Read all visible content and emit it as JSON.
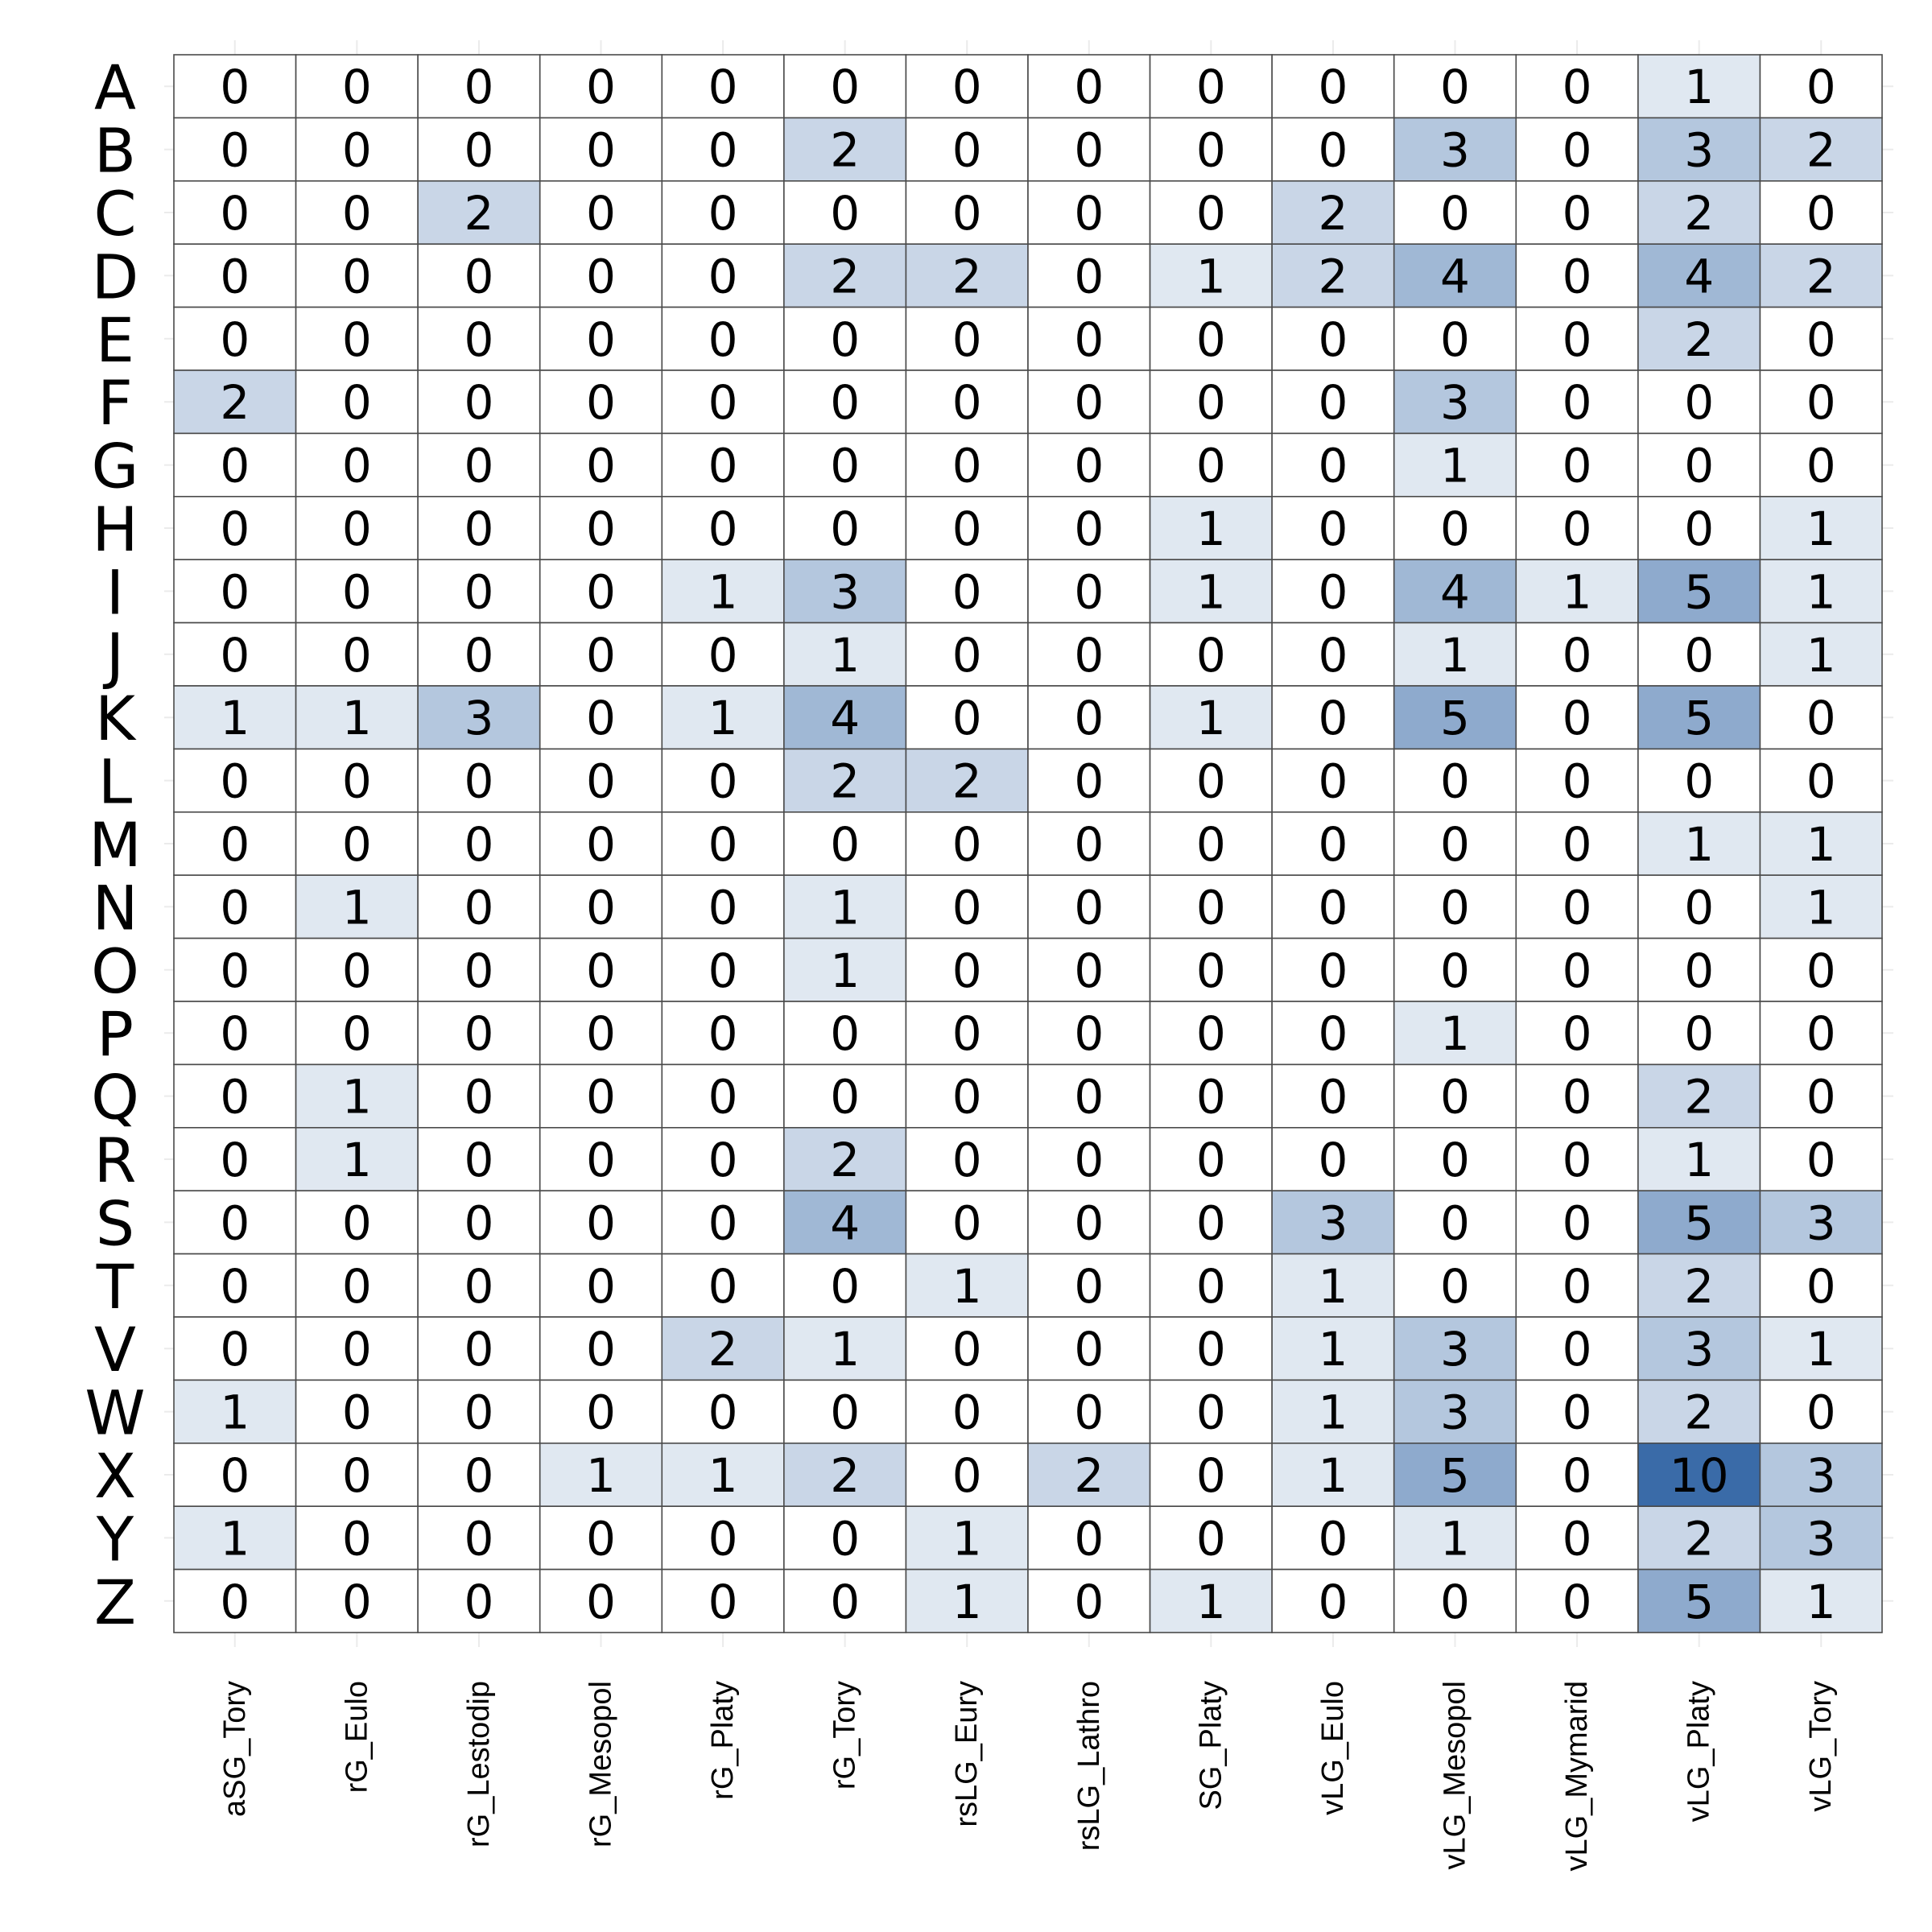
{
  "chart_data": {
    "type": "heatmap",
    "title": "",
    "xlabel": "",
    "ylabel": "",
    "rows": [
      "A",
      "B",
      "C",
      "D",
      "E",
      "F",
      "G",
      "H",
      "I",
      "J",
      "K",
      "L",
      "M",
      "N",
      "O",
      "P",
      "Q",
      "R",
      "S",
      "T",
      "V",
      "W",
      "X",
      "Y",
      "Z"
    ],
    "columns": [
      "aSG_Tory",
      "rG_Eulo",
      "rG_Lestodip",
      "rG_Mesopol",
      "rG_Platy",
      "rG_Tory",
      "rsLG_Eury",
      "rsLG_Lathro",
      "SG_Platy",
      "vLG_Eulo",
      "vLG_Mesopol",
      "vLG_Mymarid",
      "vLG_Platy",
      "vLG_Tory"
    ],
    "values": [
      [
        0,
        0,
        0,
        0,
        0,
        0,
        0,
        0,
        0,
        0,
        0,
        0,
        1,
        0
      ],
      [
        0,
        0,
        0,
        0,
        0,
        2,
        0,
        0,
        0,
        0,
        3,
        0,
        3,
        2
      ],
      [
        0,
        0,
        2,
        0,
        0,
        0,
        0,
        0,
        0,
        2,
        0,
        0,
        2,
        0
      ],
      [
        0,
        0,
        0,
        0,
        0,
        2,
        2,
        0,
        1,
        2,
        4,
        0,
        4,
        2
      ],
      [
        0,
        0,
        0,
        0,
        0,
        0,
        0,
        0,
        0,
        0,
        0,
        0,
        2,
        0
      ],
      [
        2,
        0,
        0,
        0,
        0,
        0,
        0,
        0,
        0,
        0,
        3,
        0,
        0,
        0
      ],
      [
        0,
        0,
        0,
        0,
        0,
        0,
        0,
        0,
        0,
        0,
        1,
        0,
        0,
        0
      ],
      [
        0,
        0,
        0,
        0,
        0,
        0,
        0,
        0,
        1,
        0,
        0,
        0,
        0,
        1
      ],
      [
        0,
        0,
        0,
        0,
        1,
        3,
        0,
        0,
        1,
        0,
        4,
        1,
        5,
        1
      ],
      [
        0,
        0,
        0,
        0,
        0,
        1,
        0,
        0,
        0,
        0,
        1,
        0,
        0,
        1
      ],
      [
        1,
        1,
        3,
        0,
        1,
        4,
        0,
        0,
        1,
        0,
        5,
        0,
        5,
        0
      ],
      [
        0,
        0,
        0,
        0,
        0,
        2,
        2,
        0,
        0,
        0,
        0,
        0,
        0,
        0
      ],
      [
        0,
        0,
        0,
        0,
        0,
        0,
        0,
        0,
        0,
        0,
        0,
        0,
        1,
        1
      ],
      [
        0,
        1,
        0,
        0,
        0,
        1,
        0,
        0,
        0,
        0,
        0,
        0,
        0,
        1
      ],
      [
        0,
        0,
        0,
        0,
        0,
        1,
        0,
        0,
        0,
        0,
        0,
        0,
        0,
        0
      ],
      [
        0,
        0,
        0,
        0,
        0,
        0,
        0,
        0,
        0,
        0,
        1,
        0,
        0,
        0
      ],
      [
        0,
        1,
        0,
        0,
        0,
        0,
        0,
        0,
        0,
        0,
        0,
        0,
        2,
        0
      ],
      [
        0,
        1,
        0,
        0,
        0,
        2,
        0,
        0,
        0,
        0,
        0,
        0,
        1,
        0
      ],
      [
        0,
        0,
        0,
        0,
        0,
        4,
        0,
        0,
        0,
        3,
        0,
        0,
        5,
        3
      ],
      [
        0,
        0,
        0,
        0,
        0,
        0,
        1,
        0,
        0,
        1,
        0,
        0,
        2,
        0
      ],
      [
        0,
        0,
        0,
        0,
        2,
        1,
        0,
        0,
        0,
        1,
        3,
        0,
        3,
        1
      ],
      [
        1,
        0,
        0,
        0,
        0,
        0,
        0,
        0,
        0,
        1,
        3,
        0,
        2,
        0
      ],
      [
        0,
        0,
        0,
        1,
        1,
        2,
        0,
        2,
        0,
        1,
        5,
        0,
        10,
        3
      ],
      [
        1,
        0,
        0,
        0,
        0,
        0,
        1,
        0,
        0,
        0,
        1,
        0,
        2,
        3
      ],
      [
        0,
        0,
        0,
        0,
        0,
        0,
        1,
        0,
        1,
        0,
        0,
        0,
        5,
        1
      ]
    ],
    "color_scale": {
      "min": 0,
      "max": 10,
      "low_color": "#ffffff",
      "high_color": "#3a6ba8"
    },
    "grid": true,
    "legend": "none"
  }
}
